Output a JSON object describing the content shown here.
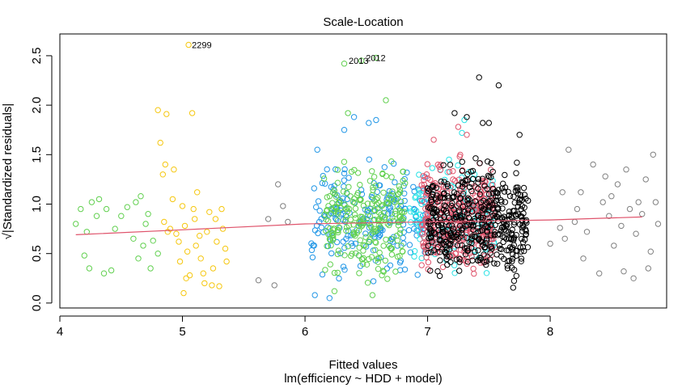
{
  "chart_data": {
    "type": "scatter",
    "title": "Scale-Location",
    "xlabel": "Fitted values",
    "subtitle": "lm(efficiency ~ HDD + model)",
    "ylabel": "√|Standardized residuals|",
    "xlim": [
      4.0,
      8.95
    ],
    "ylim": [
      -0.05,
      2.72
    ],
    "x_ticks": [
      "4",
      "5",
      "6",
      "7",
      "8"
    ],
    "y_ticks": [
      "0.0",
      "0.5",
      "1.0",
      "1.5",
      "2.0",
      "2.5"
    ],
    "grid": false,
    "legend": "none",
    "point_labels": [
      {
        "text": "2299",
        "x": 5.05,
        "y": 2.61
      },
      {
        "text": "2012",
        "x": 6.47,
        "y": 2.48
      },
      {
        "text": "2013",
        "x": 6.33,
        "y": 2.45
      }
    ],
    "smoother": {
      "color": "#DF536B",
      "points": [
        [
          4.13,
          0.69
        ],
        [
          5.0,
          0.74
        ],
        [
          6.0,
          0.8
        ],
        [
          7.0,
          0.82
        ],
        [
          7.5,
          0.83
        ],
        [
          8.0,
          0.84
        ],
        [
          8.75,
          0.87
        ]
      ]
    },
    "series": [
      {
        "color": "#61D04F",
        "points": [
          [
            4.13,
            0.8
          ],
          [
            4.17,
            0.95
          ],
          [
            4.2,
            0.48
          ],
          [
            4.22,
            0.72
          ],
          [
            4.24,
            0.35
          ],
          [
            4.26,
            1.02
          ],
          [
            4.3,
            0.88
          ],
          [
            4.32,
            1.05
          ],
          [
            4.36,
            0.3
          ],
          [
            4.38,
            0.95
          ],
          [
            4.42,
            0.33
          ],
          [
            4.45,
            0.75
          ],
          [
            4.5,
            0.88
          ],
          [
            4.55,
            0.97
          ],
          [
            4.6,
            0.65
          ],
          [
            4.62,
            1.02
          ],
          [
            4.64,
            0.45
          ],
          [
            4.66,
            1.08
          ],
          [
            4.68,
            0.58
          ],
          [
            4.7,
            0.8
          ],
          [
            4.72,
            0.9
          ],
          [
            4.74,
            0.35
          ],
          [
            4.76,
            0.63
          ],
          [
            4.8,
            0.5
          ]
        ]
      },
      {
        "color": "#F5C710",
        "points": [
          [
            4.8,
            1.95
          ],
          [
            4.82,
            1.62
          ],
          [
            4.84,
            1.3
          ],
          [
            4.85,
            0.82
          ],
          [
            4.86,
            1.4
          ],
          [
            4.87,
            1.91
          ],
          [
            4.9,
            0.75
          ],
          [
            4.92,
            1.05
          ],
          [
            4.95,
            0.7
          ],
          [
            4.97,
            0.62
          ],
          [
            5.0,
            0.98
          ],
          [
            5.02,
            0.78
          ],
          [
            5.04,
            0.52
          ],
          [
            5.05,
            2.61
          ],
          [
            5.06,
            0.28
          ],
          [
            5.08,
            1.92
          ],
          [
            5.1,
            0.85
          ],
          [
            5.12,
            1.12
          ],
          [
            5.15,
            0.45
          ],
          [
            5.18,
            0.2
          ],
          [
            5.2,
            0.72
          ],
          [
            5.22,
            0.92
          ],
          [
            5.25,
            0.35
          ],
          [
            5.28,
            0.62
          ],
          [
            5.3,
            0.17
          ],
          [
            5.32,
            0.95
          ],
          [
            5.35,
            0.55
          ],
          [
            4.88,
            0.72
          ],
          [
            4.93,
            1.35
          ],
          [
            5.01,
            0.1
          ],
          [
            5.03,
            0.25
          ],
          [
            5.09,
            0.95
          ],
          [
            5.14,
            0.68
          ],
          [
            5.17,
            0.3
          ],
          [
            5.24,
            0.18
          ],
          [
            5.27,
            0.85
          ],
          [
            5.33,
            0.75
          ],
          [
            5.36,
            0.42
          ],
          [
            4.98,
            0.42
          ],
          [
            5.11,
            0.58
          ]
        ]
      },
      {
        "color": "#808080",
        "points": [
          [
            5.62,
            0.23
          ],
          [
            5.7,
            0.85
          ],
          [
            5.75,
            0.18
          ],
          [
            5.78,
            1.2
          ],
          [
            5.82,
            0.98
          ],
          [
            5.86,
            0.82
          ],
          [
            8.0,
            0.6
          ],
          [
            8.08,
            0.76
          ],
          [
            8.12,
            0.65
          ],
          [
            8.15,
            1.55
          ],
          [
            8.2,
            0.82
          ],
          [
            8.22,
            0.95
          ],
          [
            8.25,
            1.12
          ],
          [
            8.3,
            0.72
          ],
          [
            8.35,
            1.4
          ],
          [
            8.4,
            0.3
          ],
          [
            8.43,
            1.02
          ],
          [
            8.45,
            1.28
          ],
          [
            8.48,
            0.88
          ],
          [
            8.5,
            1.08
          ],
          [
            8.52,
            0.58
          ],
          [
            8.55,
            1.2
          ],
          [
            8.58,
            0.78
          ],
          [
            8.6,
            0.32
          ],
          [
            8.62,
            1.35
          ],
          [
            8.65,
            0.95
          ],
          [
            8.68,
            0.25
          ],
          [
            8.7,
            0.7
          ],
          [
            8.72,
            1.02
          ],
          [
            8.75,
            0.9
          ],
          [
            8.78,
            1.25
          ],
          [
            8.8,
            0.35
          ],
          [
            8.82,
            0.52
          ],
          [
            8.84,
            1.5
          ],
          [
            8.86,
            1.02
          ],
          [
            8.88,
            0.8
          ],
          [
            8.1,
            1.12
          ],
          [
            8.27,
            0.45
          ]
        ]
      }
    ],
    "clusters": [
      {
        "color": "#2297E6",
        "x": [
          6.05,
          7.0
        ],
        "y": [
          0.1,
          1.6
        ],
        "n": 210,
        "extra": [
          [
            6.4,
            1.88
          ],
          [
            6.52,
            1.82
          ],
          [
            6.58,
            1.85
          ],
          [
            6.32,
            1.75
          ],
          [
            6.1,
            1.55
          ],
          [
            6.08,
            0.08
          ],
          [
            6.2,
            0.05
          ]
        ]
      },
      {
        "color": "#61D04F",
        "x": [
          6.15,
          6.82
        ],
        "y": [
          0.1,
          1.6
        ],
        "n": 240,
        "extra": [
          [
            6.46,
            2.45
          ],
          [
            6.58,
            2.48
          ],
          [
            6.32,
            2.42
          ],
          [
            6.66,
            2.05
          ],
          [
            6.35,
            1.92
          ],
          [
            6.24,
            0.12
          ],
          [
            6.55,
            0.08
          ]
        ]
      },
      {
        "color": "#28E2E5",
        "x": [
          6.85,
          7.55
        ],
        "y": [
          0.1,
          1.55
        ],
        "n": 130,
        "extra": [
          [
            7.3,
            1.85
          ],
          [
            7.28,
            1.72
          ]
        ]
      },
      {
        "color": "#DF536B",
        "x": [
          6.95,
          7.55
        ],
        "y": [
          0.05,
          1.6
        ],
        "n": 340,
        "extra": [
          [
            7.25,
            1.78
          ],
          [
            7.05,
            1.65
          ],
          [
            7.32,
            1.7
          ]
        ]
      },
      {
        "color": "#000000",
        "x": [
          7.0,
          7.82
        ],
        "y": [
          0.05,
          1.62
        ],
        "n": 460,
        "extra": [
          [
            7.42,
            2.28
          ],
          [
            7.58,
            2.2
          ],
          [
            7.22,
            1.92
          ],
          [
            7.32,
            1.88
          ],
          [
            7.5,
            1.82
          ],
          [
            7.75,
            1.7
          ],
          [
            7.45,
            1.82
          ]
        ]
      }
    ]
  }
}
